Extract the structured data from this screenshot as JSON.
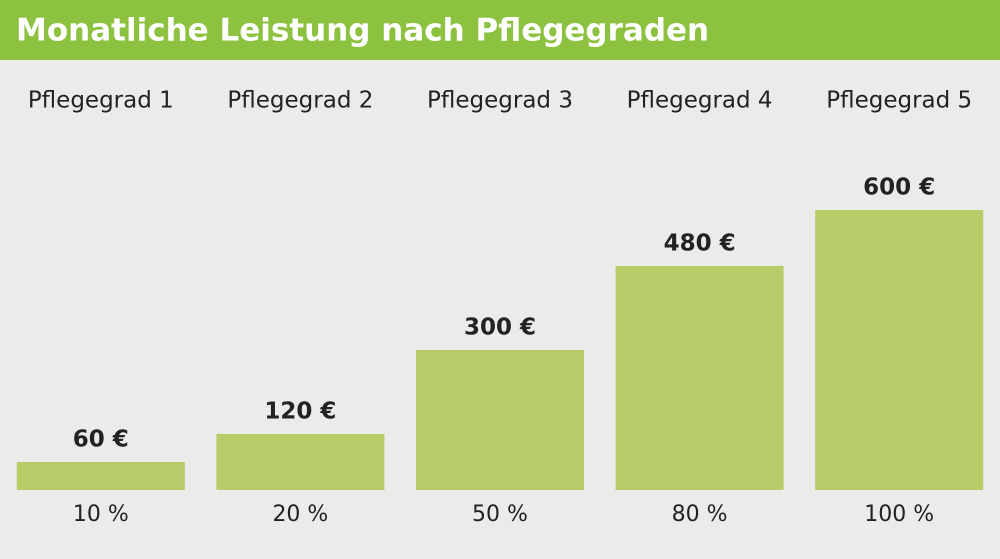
{
  "chart_data": {
    "type": "bar",
    "title": "Monatliche Leistung nach Pflegegraden",
    "categories": [
      "Pflegegrad 1",
      "Pflegegrad 2",
      "Pflegegrad 3",
      "Pflegegrad 4",
      "Pflegegrad 5"
    ],
    "values": [
      60,
      120,
      300,
      480,
      600
    ],
    "value_labels": [
      "60 €",
      "120 €",
      "300 €",
      "480 €",
      "600 €"
    ],
    "percent_labels": [
      "10 %",
      "20 %",
      "50 %",
      "80 %",
      "100 %"
    ],
    "color": "#b6cd6a",
    "ylim": [
      0,
      600
    ]
  }
}
